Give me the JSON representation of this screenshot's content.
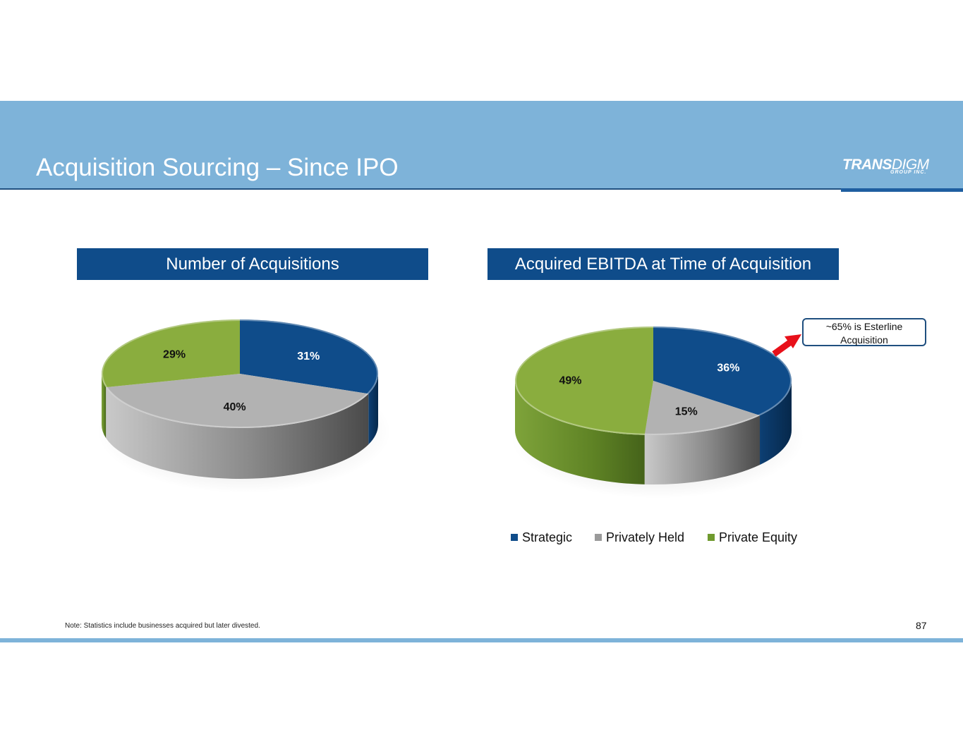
{
  "slide": {
    "title": "Acquisition Sourcing – Since IPO",
    "page_number": "87",
    "footnote": "Note: Statistics include businesses acquired but later divested."
  },
  "logo": {
    "main_bold": "TRANS",
    "main_light": "DIGM",
    "sub": "GROUP INC."
  },
  "colors": {
    "header_band": "#7eb3d9",
    "banner": "#0f4c8a",
    "strategic": "#0f4c8a",
    "privately_held": "#b2b2b2",
    "private_equity": "#8aad3e",
    "arrow": "#e8101a"
  },
  "callout": {
    "line1": "~65% is Esterline",
    "line2": "Acquisition"
  },
  "legend": [
    {
      "label": "Strategic",
      "color": "#0f4c8a"
    },
    {
      "label": "Privately Held",
      "color": "#9a9a9a"
    },
    {
      "label": "Private Equity",
      "color": "#6f9a2e"
    }
  ],
  "chart_data": [
    {
      "type": "pie",
      "title": "Number of Acquisitions",
      "categories": [
        "Strategic",
        "Privately Held",
        "Private Equity"
      ],
      "values": [
        31,
        40,
        29
      ],
      "labels": [
        "31%",
        "40%",
        "29%"
      ],
      "style": "3d"
    },
    {
      "type": "pie",
      "title": "Acquired EBITDA at Time of Acquisition",
      "categories": [
        "Strategic",
        "Privately Held",
        "Private Equity"
      ],
      "values": [
        36,
        15,
        49
      ],
      "labels": [
        "36%",
        "15%",
        "49%"
      ],
      "style": "3d",
      "annotation": "~65% is Esterline Acquisition"
    }
  ]
}
